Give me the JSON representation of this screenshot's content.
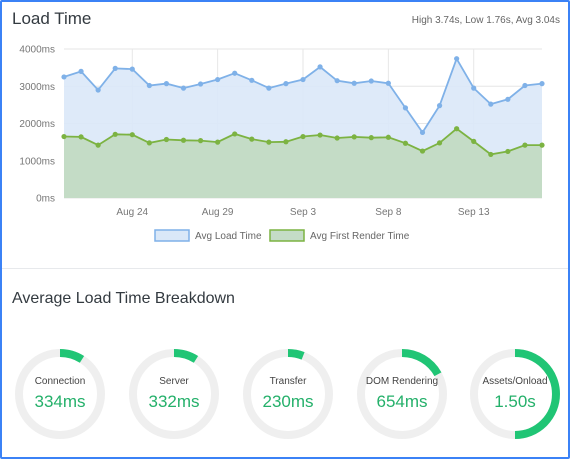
{
  "header": {
    "title": "Load Time",
    "stats": "High 3.74s, Low 1.76s, Avg 3.04s"
  },
  "colors": {
    "load_line": "#7fb1e8",
    "load_fill": "#dae8f8",
    "render_line": "#7cb342",
    "render_fill": "#c4dcc6",
    "gauge_track": "#efefef",
    "gauge_fill": "#20c575",
    "gauge_text": "#24b06a"
  },
  "chart_data": {
    "type": "area",
    "title": "",
    "xlabel": "",
    "ylabel": "",
    "ylim": [
      0,
      4000
    ],
    "y_ticks": [
      "0ms",
      "1000ms",
      "2000ms",
      "3000ms",
      "4000ms"
    ],
    "y_tick_values": [
      0,
      1000,
      2000,
      3000,
      4000
    ],
    "x_tick_labels": [
      "Aug 24",
      "Aug 29",
      "Sep 3",
      "Sep 8",
      "Sep 13"
    ],
    "x_tick_index": [
      4,
      9,
      14,
      19,
      24
    ],
    "x": [
      "Aug 20",
      "Aug 21",
      "Aug 22",
      "Aug 23",
      "Aug 24",
      "Aug 25",
      "Aug 26",
      "Aug 27",
      "Aug 28",
      "Aug 29",
      "Aug 30",
      "Aug 31",
      "Sep 1",
      "Sep 2",
      "Sep 3",
      "Sep 4",
      "Sep 5",
      "Sep 6",
      "Sep 7",
      "Sep 8",
      "Sep 9",
      "Sep 10",
      "Sep 11",
      "Sep 12",
      "Sep 13",
      "Sep 14",
      "Sep 15",
      "Sep 16",
      "Sep 17"
    ],
    "grid": true,
    "legend_position": "bottom-center",
    "series": [
      {
        "name": "Avg Load Time",
        "values": [
          3250,
          3400,
          2900,
          3480,
          3460,
          3020,
          3070,
          2950,
          3060,
          3180,
          3350,
          3160,
          2950,
          3070,
          3180,
          3520,
          3150,
          3080,
          3140,
          3080,
          2420,
          1760,
          2480,
          3740,
          2950,
          2520,
          2650,
          3020,
          3070
        ]
      },
      {
        "name": "Avg First Render Time",
        "values": [
          1650,
          1640,
          1420,
          1710,
          1700,
          1480,
          1570,
          1550,
          1540,
          1500,
          1720,
          1580,
          1500,
          1510,
          1650,
          1690,
          1610,
          1640,
          1620,
          1630,
          1470,
          1260,
          1480,
          1860,
          1520,
          1170,
          1250,
          1420,
          1420
        ]
      }
    ]
  },
  "breakdown": {
    "title": "Average Load Time Breakdown",
    "gauges": [
      {
        "label": "Connection",
        "value": "334ms",
        "fraction": 0.09
      },
      {
        "label": "Server",
        "value": "332ms",
        "fraction": 0.09
      },
      {
        "label": "Transfer",
        "value": "230ms",
        "fraction": 0.06
      },
      {
        "label": "DOM Rendering",
        "value": "654ms",
        "fraction": 0.17
      },
      {
        "label": "Assets/Onload",
        "value": "1.50s",
        "fraction": 0.5
      }
    ]
  }
}
